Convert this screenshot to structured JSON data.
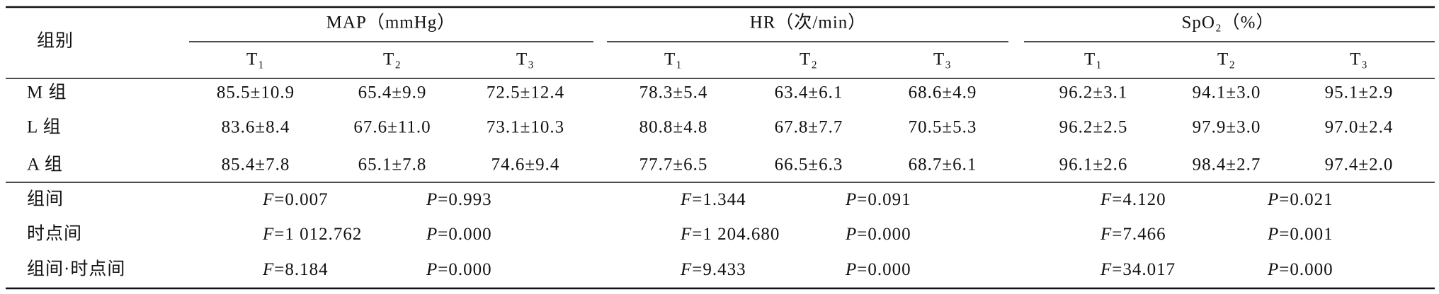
{
  "table": {
    "header": {
      "group_label": "组别",
      "groups": [
        {
          "label": "MAP（mmHg）",
          "subs": [
            "T₁",
            "T₂",
            "T₃"
          ]
        },
        {
          "label": "HR（次/min）",
          "subs": [
            "T₁",
            "T₂",
            "T₃"
          ]
        },
        {
          "label": "SpO₂（%）",
          "subs": [
            "T₁",
            "T₂",
            "T₃"
          ]
        }
      ]
    },
    "rows": [
      {
        "label": "M 组",
        "values": [
          "85.5±10.9",
          "65.4±9.9",
          "72.5±12.4",
          "78.3±5.4",
          "63.4±6.1",
          "68.6±4.9",
          "96.2±3.1",
          "94.1±3.0",
          "95.1±2.9"
        ]
      },
      {
        "label": "L 组",
        "values": [
          "83.6±8.4",
          "67.6±11.0",
          "73.1±10.3",
          "80.8±4.8",
          "67.8±7.7",
          "70.5±5.3",
          "96.2±2.5",
          "97.9±3.0",
          "97.0±2.4"
        ]
      },
      {
        "label": "A 组",
        "values": [
          "85.4±7.8",
          "65.1±7.8",
          "74.6±9.4",
          "77.7±6.5",
          "66.5±6.3",
          "68.7±6.1",
          "96.1±2.6",
          "98.4±2.7",
          "97.4±2.0"
        ]
      }
    ],
    "stats": [
      {
        "label": "组间",
        "tests": [
          {
            "F": "F=0.007",
            "P": "P=0.993"
          },
          {
            "F": "F=1.344",
            "P": "P=0.091"
          },
          {
            "F": "F=4.120",
            "P": "P=0.021"
          }
        ]
      },
      {
        "label": "时点间",
        "tests": [
          {
            "F": "F=1 012.762",
            "P": "P=0.000"
          },
          {
            "F": "F=1 204.680",
            "P": "P=0.000"
          },
          {
            "F": "F=7.466",
            "P": "P=0.001"
          }
        ]
      },
      {
        "label": "组间·时点间",
        "tests": [
          {
            "F": "F=8.184",
            "P": "P=0.000"
          },
          {
            "F": "F=9.433",
            "P": "P=0.000"
          },
          {
            "F": "F=34.017",
            "P": "P=0.000"
          }
        ]
      }
    ]
  }
}
